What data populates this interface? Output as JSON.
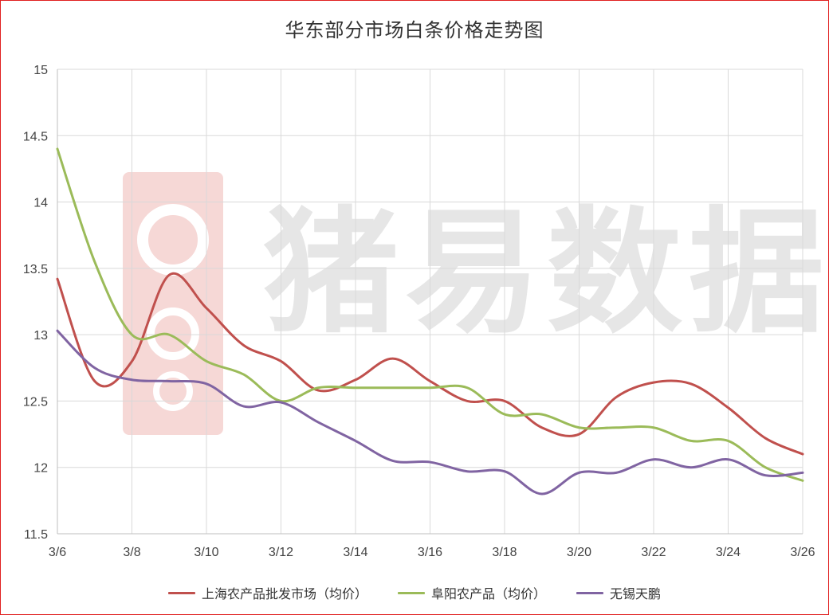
{
  "chart_data": {
    "type": "line",
    "title": "华东部分市场白条价格走势图",
    "x": [
      "3/6",
      "3/7",
      "3/8",
      "3/9",
      "3/10",
      "3/11",
      "3/12",
      "3/13",
      "3/14",
      "3/15",
      "3/16",
      "3/17",
      "3/18",
      "3/19",
      "3/20",
      "3/21",
      "3/22",
      "3/23",
      "3/24",
      "3/25",
      "3/26"
    ],
    "x_tick_labels": [
      "3/6",
      "3/8",
      "3/10",
      "3/12",
      "3/14",
      "3/16",
      "3/18",
      "3/20",
      "3/22",
      "3/24",
      "3/26"
    ],
    "y_tick_labels": [
      "11.5",
      "12",
      "12.5",
      "13",
      "13.5",
      "14",
      "14.5",
      "15"
    ],
    "ylim": [
      11.5,
      15
    ],
    "grid": true,
    "legend_position": "bottom",
    "series": [
      {
        "name": "上海农产品批发市场（均价）",
        "color": "#c0504d",
        "values": [
          13.42,
          12.65,
          12.8,
          13.45,
          13.2,
          12.92,
          12.8,
          12.58,
          12.66,
          12.82,
          12.65,
          12.5,
          12.5,
          12.3,
          12.25,
          12.53,
          12.64,
          12.63,
          12.45,
          12.22,
          12.1
        ]
      },
      {
        "name": "阜阳农产品（均价）",
        "color": "#9bbb59",
        "values": [
          14.4,
          13.55,
          13.0,
          13.0,
          12.8,
          12.7,
          12.5,
          12.6,
          12.6,
          12.6,
          12.6,
          12.6,
          12.4,
          12.4,
          12.3,
          12.3,
          12.3,
          12.2,
          12.2,
          12.0,
          11.9
        ]
      },
      {
        "name": "无锡天鹏",
        "color": "#8064a2",
        "values": [
          13.03,
          12.75,
          12.66,
          12.65,
          12.63,
          12.46,
          12.49,
          12.34,
          12.2,
          12.05,
          12.04,
          11.97,
          11.97,
          11.8,
          11.96,
          11.96,
          12.06,
          12.0,
          12.06,
          11.94,
          11.96
        ]
      }
    ]
  },
  "watermark": {
    "text": "猪易数据",
    "logo": "pig-logo-icon"
  }
}
